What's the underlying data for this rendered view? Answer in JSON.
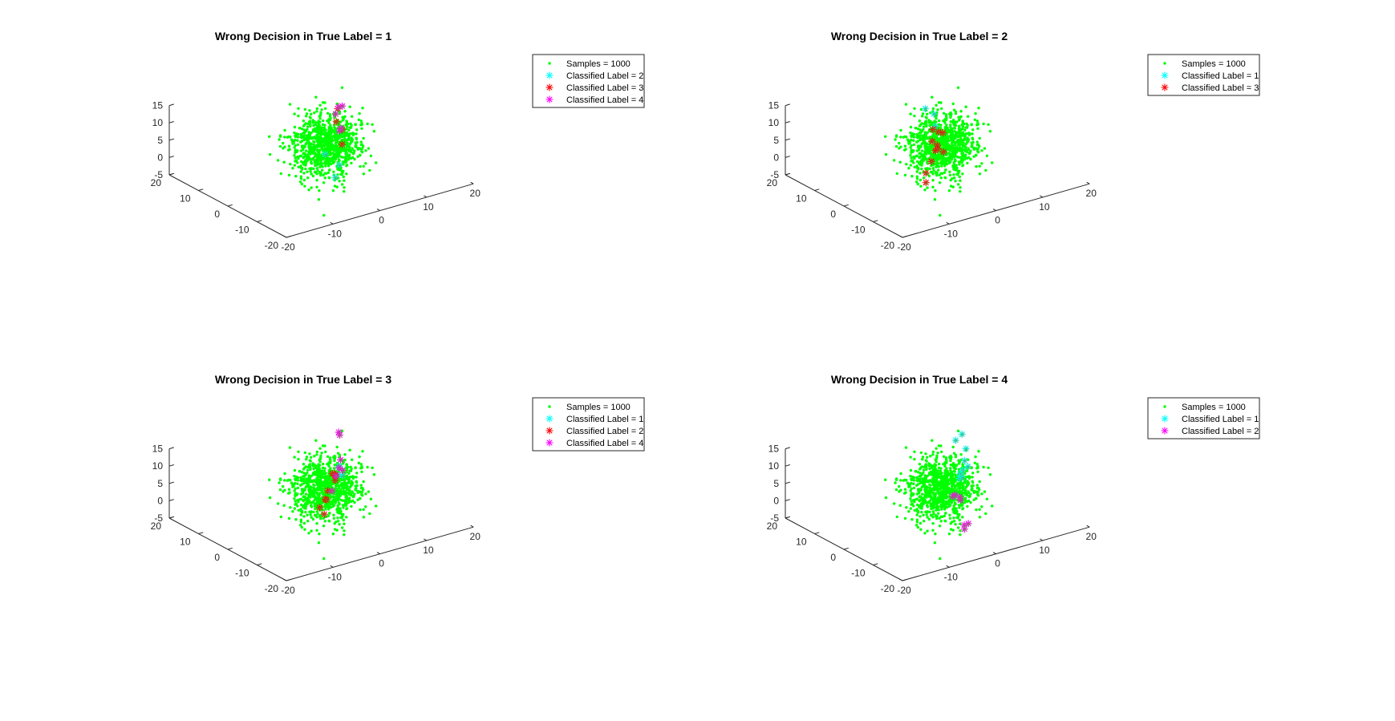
{
  "chart_data": [
    {
      "type": "scatter",
      "title": "Wrong Decision in True Label = 1",
      "samples_label": "Samples = 1000",
      "sample_count": 1000,
      "zlim": [
        -5,
        15
      ],
      "xlim": [
        -20,
        20
      ],
      "ylim": [
        -20,
        20
      ],
      "z_ticks": [
        "-5",
        "0",
        "5",
        "10",
        "15"
      ],
      "left_ticks": [
        "-20",
        "-10",
        "0",
        "10",
        "20"
      ],
      "right_ticks": [
        "-20",
        "-10",
        "0",
        "10",
        "20"
      ],
      "series": [
        {
          "name": "Classified Label = 2",
          "color": "#00ffff",
          "points": [
            [
              1.2,
              0.6,
              1.5
            ],
            [
              0.6,
              -3.7,
              -3.0
            ],
            [
              2.6,
              -2.1,
              -0.9
            ]
          ]
        },
        {
          "name": "Classified Label = 3",
          "color": "#ff0000",
          "points": [
            [
              5.9,
              2.3,
              6.0
            ],
            [
              6.5,
              5.3,
              6.7
            ],
            [
              8.4,
              7.8,
              8.6
            ],
            [
              5.3,
              1.4,
              2.4
            ]
          ]
        },
        {
          "name": "Classified Label = 4",
          "color": "#ff00ff",
          "points": [
            [
              7.2,
              6.6,
              8.1
            ],
            [
              9.1,
              7.4,
              9.3
            ],
            [
              8.8,
              8.2,
              8.8
            ],
            [
              7.6,
              5.9,
              3.4
            ],
            [
              6.1,
              3.0,
              6.0
            ]
          ]
        }
      ]
    },
    {
      "type": "scatter",
      "title": "Wrong Decision in True Label = 2",
      "samples_label": "Samples = 1000",
      "sample_count": 1000,
      "zlim": [
        -5,
        15
      ],
      "xlim": [
        -20,
        20
      ],
      "ylim": [
        -20,
        20
      ],
      "z_ticks": [
        "-5",
        "0",
        "5",
        "10",
        "15"
      ],
      "left_ticks": [
        "-20",
        "-10",
        "0",
        "10",
        "20"
      ],
      "right_ticks": [
        "-20",
        "-10",
        "0",
        "10",
        "20"
      ],
      "series": [
        {
          "name": "Classified Label = 1",
          "color": "#00ffff",
          "points": [
            [
              1.4,
              6.4,
              12.0
            ],
            [
              3.0,
              6.0,
              10.0
            ],
            [
              1.8,
              3.6,
              8.0
            ]
          ]
        },
        {
          "name": "Classified Label = 3",
          "color": "#ff0000",
          "points": [
            [
              1.1,
              -0.3,
              2.6
            ],
            [
              0.4,
              0.7,
              4.4
            ],
            [
              3.3,
              3.4,
              5.6
            ],
            [
              2.6,
              3.8,
              6.0
            ],
            [
              -3.4,
              -1.5,
              -1.2
            ],
            [
              -3.9,
              -2.3,
              -3.4
            ],
            [
              0.7,
              1.8,
              2.2
            ],
            [
              2.4,
              3.7,
              1.2
            ],
            [
              -0.6,
              1.1,
              -0.1
            ],
            [
              2.4,
              5.4,
              6.0
            ],
            [
              1.5,
              4.2,
              3.5
            ]
          ]
        }
      ]
    },
    {
      "type": "scatter",
      "title": "Wrong Decision in True Label = 3",
      "samples_label": "Samples = 1000",
      "sample_count": 1000,
      "zlim": [
        -5,
        15
      ],
      "xlim": [
        -20,
        20
      ],
      "ylim": [
        -20,
        20
      ],
      "z_ticks": [
        "-5",
        "0",
        "5",
        "10",
        "15"
      ],
      "left_ticks": [
        "-20",
        "-10",
        "0",
        "10",
        "20"
      ],
      "right_ticks": [
        "-20",
        "-10",
        "0",
        "10",
        "20"
      ],
      "series": [
        {
          "name": "Classified Label = 1",
          "color": "#00ffff",
          "points": [
            [
              5.4,
              2.5,
              8.0
            ],
            [
              4.8,
              2.0,
              6.0
            ],
            [
              6.0,
              2.4,
              5.2
            ]
          ]
        },
        {
          "name": "Classified Label = 2",
          "color": "#ff0000",
          "points": [
            [
              2.2,
              -1.3,
              8.6
            ],
            [
              2.5,
              -0.6,
              7.8
            ],
            [
              1.9,
              -1.7,
              7.2
            ],
            [
              -0.6,
              -2.7,
              3.0
            ],
            [
              -1.3,
              -3.4,
              3.8
            ],
            [
              -1.9,
              -2.5,
              1.2
            ],
            [
              -2.2,
              -4.5,
              0.3
            ],
            [
              -0.1,
              -2.4,
              5.3
            ],
            [
              2.6,
              0.4,
              8.0
            ]
          ]
        },
        {
          "name": "Classified Label = 4",
          "color": "#ff00ff",
          "points": [
            [
              8.9,
              8.3,
              13.9
            ],
            [
              9.3,
              8.6,
              12.8
            ],
            [
              6.5,
              4.4,
              6.3
            ],
            [
              5.9,
              2.2,
              6.8
            ],
            [
              6.1,
              4.7,
              3.9
            ],
            [
              4.3,
              3.2,
              1.0
            ],
            [
              7.1,
              4.8,
              8.2
            ]
          ]
        }
      ]
    },
    {
      "type": "scatter",
      "title": "Wrong Decision in True Label = 4",
      "samples_label": "Samples = 1000",
      "sample_count": 1000,
      "zlim": [
        -5,
        15
      ],
      "xlim": [
        -20,
        20
      ],
      "ylim": [
        -20,
        20
      ],
      "z_ticks": [
        "-5",
        "0",
        "5",
        "10",
        "15"
      ],
      "left_ticks": [
        "-20",
        "-10",
        "0",
        "10",
        "20"
      ],
      "right_ticks": [
        "-20",
        "-10",
        "0",
        "10",
        "20"
      ],
      "series": [
        {
          "name": "Classified Label = 1",
          "color": "#00ffff",
          "points": [
            [
              8.0,
              6.6,
              12.7
            ],
            [
              9.3,
              6.5,
              14.0
            ],
            [
              8.2,
              3.4,
              11.6
            ],
            [
              7.1,
              2.1,
              9.2
            ],
            [
              6.5,
              0.0,
              8.7
            ],
            [
              6.3,
              1.5,
              7.0
            ],
            [
              5.7,
              1.3,
              6.3
            ],
            [
              5.1,
              0.6,
              5.5
            ],
            [
              5.7,
              0.7,
              5.5
            ]
          ]
        },
        {
          "name": "Classified Label = 2",
          "color": "#ff00ff",
          "points": [
            [
              4.8,
              -0.2,
              -0.3
            ],
            [
              4.5,
              1.3,
              0.6
            ],
            [
              4.9,
              2.6,
              -0.5
            ],
            [
              2.9,
              -4.6,
              -5.9
            ],
            [
              4.6,
              -3.2,
              -5.6
            ],
            [
              3.9,
              -2.9,
              -5.9
            ],
            [
              5.6,
              1.4,
              -0.4
            ]
          ]
        }
      ]
    }
  ]
}
